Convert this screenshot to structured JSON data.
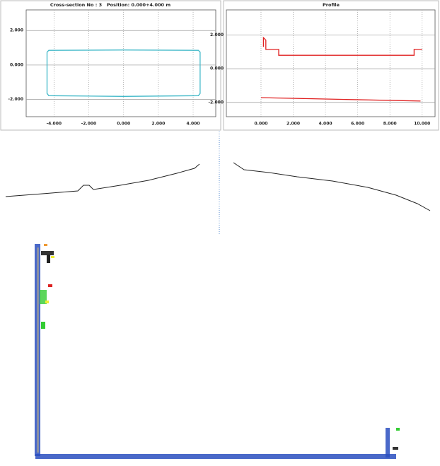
{
  "chart_data": [
    {
      "type": "line",
      "title": "Cross-section No : 3   Position: 0.000+4.000 m",
      "xlim": [
        -5.6,
        5.3
      ],
      "ylim": [
        -3.0,
        3.2
      ],
      "xticks": [
        {
          "value": -4,
          "label": "-4.000"
        },
        {
          "value": -2,
          "label": "-2.000"
        },
        {
          "value": 0,
          "label": "0.000"
        },
        {
          "value": 2,
          "label": "2.000"
        },
        {
          "value": 4,
          "label": "4.000"
        }
      ],
      "yticks": [
        {
          "value": -2,
          "label": "-2.000"
        },
        {
          "value": 0,
          "label": "0.000"
        },
        {
          "value": 2,
          "label": "2.000"
        }
      ],
      "grid": true,
      "series": [
        {
          "color": "#3fb8c8",
          "x": [
            -4.4,
            -4.3,
            0,
            4.3,
            4.4,
            4.4,
            4.3,
            0,
            -4.3,
            -4.4,
            -4.4
          ],
          "y": [
            0.75,
            0.85,
            0.87,
            0.85,
            0.75,
            -1.65,
            -1.78,
            -1.82,
            -1.78,
            -1.65,
            0.75
          ]
        }
      ]
    },
    {
      "type": "line",
      "title": "Profile",
      "xlim": [
        -2.15,
        10.8
      ],
      "ylim": [
        -2.85,
        3.5
      ],
      "xticks": [
        {
          "value": 0,
          "label": "0.000"
        },
        {
          "value": 2,
          "label": "2.000"
        },
        {
          "value": 4,
          "label": "4.000"
        },
        {
          "value": 6,
          "label": "6.000"
        },
        {
          "value": 8,
          "label": "8.000"
        },
        {
          "value": 10,
          "label": "10.000"
        }
      ],
      "yticks": [
        {
          "value": -2,
          "label": "-2.000"
        },
        {
          "value": 0,
          "label": "0.000"
        },
        {
          "value": 2,
          "label": "2.000"
        }
      ],
      "grid": true,
      "series": [
        {
          "color": "#e02020",
          "x": [
            0.15,
            0.15,
            0.3,
            0.3,
            1.1,
            1.1,
            9.5,
            9.5,
            10.0
          ],
          "y": [
            1.3,
            1.85,
            1.7,
            1.15,
            1.15,
            0.8,
            0.8,
            1.15,
            1.15
          ]
        },
        {
          "color": "#e02020",
          "x": [
            0,
            5,
            9.9
          ],
          "y": [
            -1.72,
            -1.82,
            -1.92
          ]
        }
      ]
    }
  ]
}
